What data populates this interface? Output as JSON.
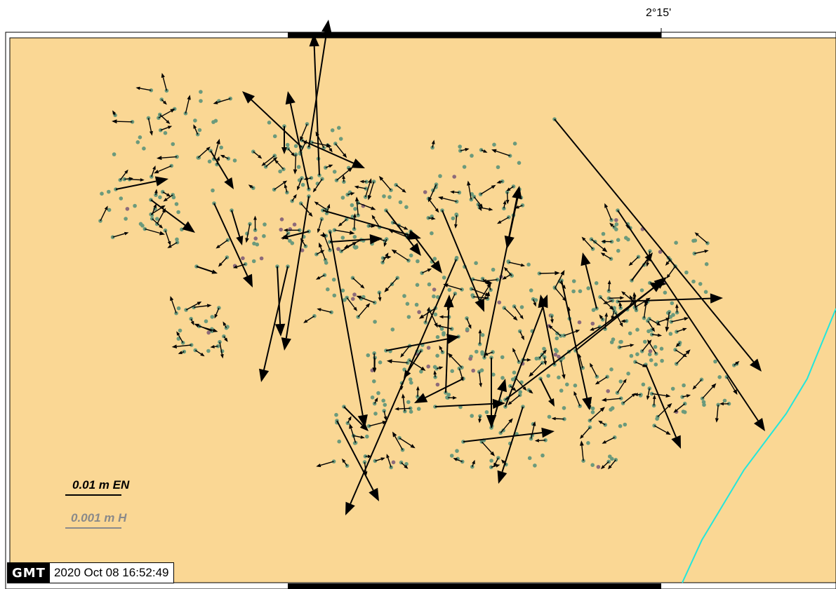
{
  "map": {
    "tick_label_top": "2°15'",
    "land_color": "#fad794",
    "coastline_color": "#22e6dc",
    "station_color": "#6b9a7c",
    "station_alt_color": "#8d6a7a",
    "arrow_color": "#000000"
  },
  "legend": {
    "horizontal_label": "0.01 m EN",
    "vertical_label": "0.001 m H",
    "horizontal_color": "#000000",
    "vertical_color": "#8a8a8a"
  },
  "timestamp": {
    "logo_text": "GMT",
    "text": "2020 Oct 08 16:52:49"
  }
}
